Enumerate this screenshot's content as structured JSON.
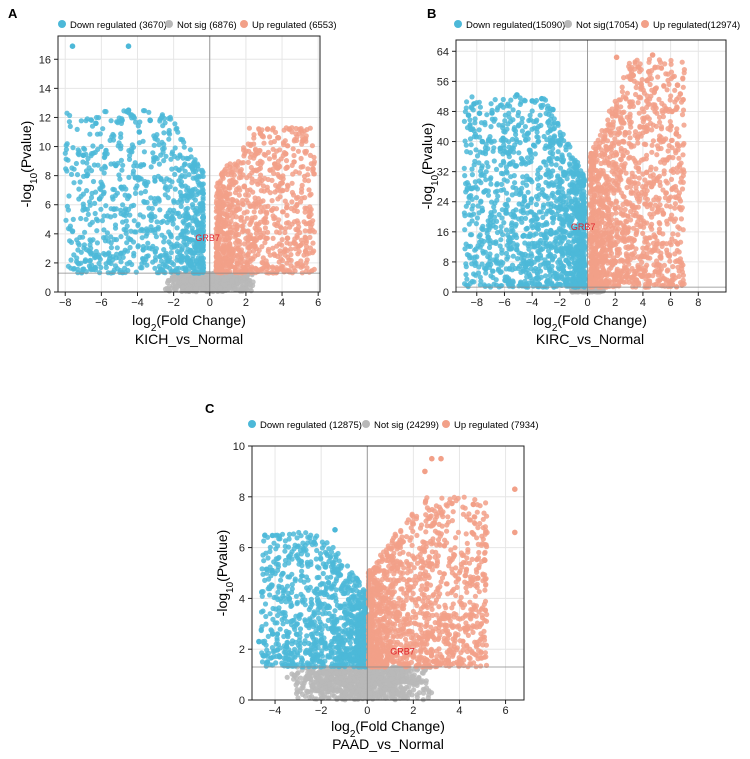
{
  "colors": {
    "down": "#4cb8d8",
    "notsig": "#b8b8b8",
    "up": "#f2a088",
    "grb7": "#e0202a",
    "grid": "#e6e6e6",
    "axis": "#222222"
  },
  "chart_data": [
    {
      "panel_label": "A",
      "type": "scatter",
      "title": "KICH_vs_Normal",
      "xlabel": "log2(Fold Change)",
      "ylabel": "-log10(Pvalue)",
      "xlim": [
        -8.4,
        6.1
      ],
      "ylim": [
        0,
        17.6
      ],
      "xticks": [
        -8,
        -6,
        -4,
        -2,
        0,
        2,
        4,
        6
      ],
      "yticks": [
        0,
        2,
        4,
        6,
        8,
        10,
        12,
        14,
        16
      ],
      "legend_position": "top",
      "legend": [
        {
          "key": "down",
          "label": "Down regulated (3670)"
        },
        {
          "key": "notsig",
          "label": "Not sig (6876)"
        },
        {
          "key": "up",
          "label": "Up regulated (6553)"
        }
      ],
      "thresholds": {
        "log2fc": 0,
        "pvalue_line": 1.3
      },
      "annotation": {
        "text": "GRB7",
        "x": -0.8,
        "y": 3.5
      },
      "series": [
        {
          "key": "down",
          "name": "Down regulated (3670)",
          "cloud": {
            "fc_min": -8.0,
            "fc_max": -0.35,
            "y_min": 1.3,
            "y_max": 12.5,
            "spread": 1.6,
            "count": 900
          },
          "points": [
            [
              -7.6,
              16.9
            ],
            [
              -4.5,
              16.9
            ],
            [
              -6.3,
              11.6
            ],
            [
              -4.5,
              12.5
            ],
            [
              -3.3,
              11.8
            ],
            [
              -5.8,
              9.5
            ],
            [
              -6.8,
              8.0
            ],
            [
              -7.0,
              9.4
            ],
            [
              -5.2,
              8.7
            ],
            [
              -3.9,
              11.0
            ],
            [
              -4.9,
              7.2
            ],
            [
              -6.1,
              6.4
            ],
            [
              -5.3,
              5.7
            ]
          ]
        },
        {
          "key": "up",
          "name": "Up regulated (6553)",
          "cloud": {
            "fc_min": 0.35,
            "fc_max": 5.8,
            "y_min": 1.3,
            "y_max": 11.3,
            "spread": 1.2,
            "count": 900
          },
          "points": [
            [
              5.5,
              5.2
            ],
            [
              4.4,
              11.2
            ],
            [
              4.2,
              9.5
            ],
            [
              3.8,
              10.6
            ],
            [
              4.0,
              7.5
            ],
            [
              4.3,
              3.7
            ],
            [
              3.6,
              8.8
            ],
            [
              3.2,
              11.2
            ],
            [
              2.8,
              10.9
            ]
          ]
        },
        {
          "key": "notsig",
          "name": "Not sig (6876)",
          "cloud": {
            "fc_min": -2.6,
            "fc_max": 2.6,
            "y_min": 0,
            "y_max": 1.3,
            "count": 650
          },
          "points": []
        }
      ]
    },
    {
      "panel_label": "B",
      "type": "scatter",
      "title": "KIRC_vs_Normal",
      "xlabel": "log2(Fold Change)",
      "ylabel": "-log10(Pvalue)",
      "xlim": [
        -9.5,
        10
      ],
      "ylim": [
        0,
        67
      ],
      "xticks": [
        -8,
        -6,
        -4,
        -2,
        0,
        2,
        4,
        6,
        8
      ],
      "yticks": [
        0,
        8,
        16,
        24,
        32,
        40,
        48,
        56,
        64
      ],
      "legend_position": "top",
      "legend": [
        {
          "key": "down",
          "label": "Down regulated(15090)"
        },
        {
          "key": "notsig",
          "label": "Not sig(17054)"
        },
        {
          "key": "up",
          "label": "Up regulated(12974)"
        }
      ],
      "thresholds": {
        "log2fc": 0,
        "pvalue_line": 1.3
      },
      "annotation": {
        "text": "GRB7",
        "x": -1.2,
        "y": 16.5
      },
      "series": [
        {
          "key": "down",
          "name": "Down regulated(15090)",
          "cloud": {
            "fc_min": -8.9,
            "fc_max": -0.2,
            "y_min": 1.3,
            "y_max": 52,
            "spread": 1.3,
            "count": 1400
          },
          "points": [
            [
              -8.6,
              47.0
            ],
            [
              -8.2,
              50.0
            ],
            [
              -7.8,
              47.5
            ],
            [
              -6.9,
              47.6
            ],
            [
              -5.1,
              52.4
            ],
            [
              -4.0,
              50.8
            ],
            [
              -3.3,
              51.4
            ],
            [
              -2.5,
              48.5
            ],
            [
              -7.6,
              40.0
            ],
            [
              -6.3,
              38.2
            ]
          ]
        },
        {
          "key": "up",
          "name": "Up regulated(12974)",
          "cloud": {
            "fc_min": 0.2,
            "fc_max": 7.0,
            "y_min": 1.3,
            "y_max": 62,
            "spread": 1.0,
            "count": 1400
          },
          "points": [
            [
              4.7,
              63.0
            ],
            [
              2.1,
              62.4
            ],
            [
              3.3,
              57.6
            ],
            [
              4.3,
              56.2
            ],
            [
              6.5,
              55.0
            ],
            [
              4.9,
              54.0
            ],
            [
              6.1,
              48.0
            ],
            [
              6.4,
              42.0
            ],
            [
              5.2,
              40.5
            ]
          ]
        },
        {
          "key": "notsig",
          "name": "Not sig(17054)",
          "cloud": {
            "fc_min": -1.2,
            "fc_max": 1.2,
            "y_min": 0,
            "y_max": 1.3,
            "count": 500
          },
          "points": []
        }
      ]
    },
    {
      "panel_label": "C",
      "type": "scatter",
      "title": "PAAD_vs_Normal",
      "xlabel": "log2(Fold Change)",
      "ylabel": "-log10(Pvalue)",
      "xlim": [
        -5,
        6.8
      ],
      "ylim": [
        0,
        10
      ],
      "xticks": [
        -4,
        -2,
        0,
        2,
        4,
        6
      ],
      "yticks": [
        0,
        2,
        4,
        6,
        8,
        10
      ],
      "legend_position": "top",
      "legend": [
        {
          "key": "down",
          "label": "Down regulated (12875)"
        },
        {
          "key": "notsig",
          "label": "Not sig (24299)"
        },
        {
          "key": "up",
          "label": "Up regulated (7934)"
        }
      ],
      "thresholds": {
        "log2fc": 0,
        "pvalue_line": 1.3
      },
      "annotation": {
        "text": "GRB7",
        "x": 1.0,
        "y": 1.8
      },
      "series": [
        {
          "key": "down",
          "name": "Down regulated (12875)",
          "cloud": {
            "fc_min": -4.6,
            "fc_max": -0.05,
            "y_min": 1.3,
            "y_max": 6.6,
            "spread": 1.1,
            "count": 1000
          },
          "points": [
            [
              -2.3,
              6.2
            ],
            [
              -1.4,
              6.7
            ],
            [
              -4.7,
              2.3
            ],
            [
              -4.1,
              2.6
            ],
            [
              -3.5,
              2.1
            ],
            [
              -3.8,
              1.7
            ]
          ]
        },
        {
          "key": "up",
          "name": "Up regulated (7934)",
          "cloud": {
            "fc_min": 0.05,
            "fc_max": 5.2,
            "y_min": 1.3,
            "y_max": 8.0,
            "spread": 1.0,
            "count": 1300
          },
          "points": [
            [
              2.8,
              9.5
            ],
            [
              3.2,
              9.5
            ],
            [
              2.5,
              9.0
            ],
            [
              6.4,
              8.3
            ],
            [
              6.4,
              6.6
            ],
            [
              4.6,
              7.7
            ],
            [
              5.1,
              5.5
            ],
            [
              4.8,
              4.8
            ]
          ]
        },
        {
          "key": "notsig",
          "name": "Not sig (24299)",
          "cloud": {
            "fc_min": -3.5,
            "fc_max": 3.0,
            "y_min": 0,
            "y_max": 1.3,
            "count": 900
          },
          "points": []
        }
      ]
    }
  ]
}
